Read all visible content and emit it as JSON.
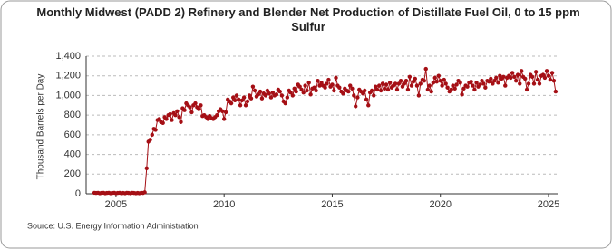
{
  "chart_data": {
    "type": "line",
    "title": "Monthly Midwest (PADD 2) Refinery and Blender Net Production of Distillate Fuel Oil, 0 to 15 ppm Sulfur",
    "y_label": "Thousand Barrels per Day",
    "source": "Source: U.S. Energy Information Administration",
    "xlim": [
      2003.62,
      2025.42
    ],
    "xticks": [
      2005,
      2010,
      2015,
      2020,
      2025
    ],
    "ylim": [
      0,
      1400
    ],
    "yticks": [
      0,
      200,
      400,
      600,
      800,
      {
        "value": 1000,
        "label": "1,000"
      },
      {
        "value": 1200,
        "label": "1,200"
      },
      {
        "value": 1400,
        "label": "1,400"
      }
    ],
    "grid": true,
    "x": [
      2004,
      2004.08,
      2004.17,
      2004.25,
      2004.33,
      2004.42,
      2004.5,
      2004.58,
      2004.67,
      2004.75,
      2004.83,
      2004.92,
      2005,
      2005.08,
      2005.17,
      2005.25,
      2005.33,
      2005.42,
      2005.5,
      2005.58,
      2005.67,
      2005.75,
      2005.83,
      2005.92,
      2006,
      2006.08,
      2006.17,
      2006.25,
      2006.33,
      2006.42,
      2006.5,
      2006.58,
      2006.67,
      2006.75,
      2006.83,
      2006.92,
      2007,
      2007.08,
      2007.17,
      2007.25,
      2007.33,
      2007.42,
      2007.5,
      2007.58,
      2007.67,
      2007.75,
      2007.83,
      2007.92,
      2008,
      2008.08,
      2008.17,
      2008.25,
      2008.33,
      2008.42,
      2008.5,
      2008.58,
      2008.67,
      2008.75,
      2008.83,
      2008.92,
      2009,
      2009.08,
      2009.17,
      2009.25,
      2009.33,
      2009.42,
      2009.5,
      2009.58,
      2009.67,
      2009.75,
      2009.83,
      2009.92,
      2010,
      2010.08,
      2010.17,
      2010.25,
      2010.33,
      2010.42,
      2010.5,
      2010.58,
      2010.67,
      2010.75,
      2010.83,
      2010.92,
      2011,
      2011.08,
      2011.17,
      2011.25,
      2011.33,
      2011.42,
      2011.5,
      2011.58,
      2011.67,
      2011.75,
      2011.83,
      2011.92,
      2012,
      2012.08,
      2012.17,
      2012.25,
      2012.33,
      2012.42,
      2012.5,
      2012.58,
      2012.67,
      2012.75,
      2012.83,
      2012.92,
      2013,
      2013.08,
      2013.17,
      2013.25,
      2013.33,
      2013.42,
      2013.5,
      2013.58,
      2013.67,
      2013.75,
      2013.83,
      2013.92,
      2014,
      2014.08,
      2014.17,
      2014.25,
      2014.33,
      2014.42,
      2014.5,
      2014.58,
      2014.67,
      2014.75,
      2014.83,
      2014.92,
      2015,
      2015.08,
      2015.17,
      2015.25,
      2015.33,
      2015.42,
      2015.5,
      2015.58,
      2015.67,
      2015.75,
      2015.83,
      2015.92,
      2016,
      2016.08,
      2016.17,
      2016.25,
      2016.33,
      2016.42,
      2016.5,
      2016.58,
      2016.67,
      2016.75,
      2016.83,
      2016.92,
      2017,
      2017.08,
      2017.17,
      2017.25,
      2017.33,
      2017.42,
      2017.5,
      2017.58,
      2017.67,
      2017.75,
      2017.83,
      2017.92,
      2018,
      2018.08,
      2018.17,
      2018.25,
      2018.33,
      2018.42,
      2018.5,
      2018.58,
      2018.67,
      2018.75,
      2018.83,
      2018.92,
      2019,
      2019.08,
      2019.17,
      2019.25,
      2019.33,
      2019.42,
      2019.5,
      2019.58,
      2019.67,
      2019.75,
      2019.83,
      2019.92,
      2020,
      2020.08,
      2020.17,
      2020.25,
      2020.33,
      2020.42,
      2020.5,
      2020.58,
      2020.67,
      2020.75,
      2020.83,
      2020.92,
      2021,
      2021.08,
      2021.17,
      2021.25,
      2021.33,
      2021.42,
      2021.5,
      2021.58,
      2021.67,
      2021.75,
      2021.83,
      2021.92,
      2022,
      2022.08,
      2022.17,
      2022.25,
      2022.33,
      2022.42,
      2022.5,
      2022.58,
      2022.67,
      2022.75,
      2022.83,
      2022.92,
      2023,
      2023.08,
      2023.17,
      2023.25,
      2023.33,
      2023.42,
      2023.5,
      2023.58,
      2023.67,
      2023.75,
      2023.83,
      2023.92,
      2024,
      2024.08,
      2024.17,
      2024.25,
      2024.33,
      2024.42,
      2024.5,
      2024.58,
      2024.67,
      2024.75,
      2024.83,
      2024.92,
      2025,
      2025.08,
      2025.17,
      2025.25,
      2025.33
    ],
    "series": [
      {
        "color": "#a50f15",
        "values": [
          10,
          8,
          10,
          5,
          8,
          10,
          5,
          8,
          10,
          5,
          8,
          10,
          5,
          8,
          10,
          5,
          8,
          5,
          10,
          8,
          5,
          10,
          8,
          5,
          8,
          5,
          10,
          8,
          15,
          260,
          530,
          550,
          600,
          660,
          650,
          750,
          760,
          730,
          720,
          780,
          760,
          800,
          810,
          750,
          820,
          800,
          840,
          780,
          730,
          870,
          850,
          920,
          900,
          880,
          830,
          900,
          920,
          880,
          860,
          900,
          790,
          800,
          780,
          760,
          790,
          770,
          760,
          780,
          800,
          840,
          860,
          840,
          760,
          830,
          960,
          940,
          920,
          980,
          950,
          1000,
          960,
          900,
          950,
          980,
          900,
          940,
          1000,
          970,
          1090,
          1050,
          990,
          1010,
          1040,
          970,
          1020,
          1000,
          1050,
          1020,
          980,
          1030,
          1000,
          1010,
          1060,
          1040,
          1000,
          940,
          920,
          980,
          1050,
          1030,
          1000,
          1070,
          1040,
          1110,
          1090,
          1060,
          1030,
          1100,
          1050,
          1130,
          1010,
          1070,
          1080,
          1050,
          1150,
          1100,
          1130,
          1100,
          1080,
          1120,
          1160,
          1090,
          1110,
          1050,
          1180,
          1100,
          1080,
          1040,
          1020,
          1070,
          1050,
          1040,
          1100,
          1070,
          1000,
          890,
          980,
          1060,
          1040,
          1020,
          1050,
          960,
          900,
          1030,
          1050,
          1000,
          1090,
          1060,
          1100,
          1050,
          1120,
          1070,
          1110,
          1060,
          1130,
          1080,
          1100,
          1120,
          1060,
          1120,
          1150,
          1090,
          1120,
          1150,
          1060,
          1190,
          1100,
          1140,
          1170,
          1100,
          1000,
          1120,
          1160,
          1150,
          1270,
          1060,
          1100,
          1040,
          1130,
          1180,
          1140,
          1200,
          1150,
          1100,
          1160,
          1120,
          1080,
          1040,
          1060,
          1100,
          1070,
          1110,
          1150,
          1130,
          1010,
          1070,
          1100,
          1090,
          1130,
          1140,
          1100,
          1060,
          1130,
          1090,
          1110,
          1150,
          1120,
          1080,
          1150,
          1140,
          1170,
          1120,
          1150,
          1180,
          1130,
          1200,
          1170,
          1190,
          1100,
          1180,
          1200,
          1180,
          1230,
          1190,
          1150,
          1210,
          1120,
          1250,
          1190,
          1170,
          1060,
          1120,
          1210,
          1190,
          1120,
          1240,
          1160,
          1120,
          1200,
          1210,
          1180,
          1250,
          1200,
          1160,
          1230,
          1150,
          1040
        ]
      }
    ]
  }
}
